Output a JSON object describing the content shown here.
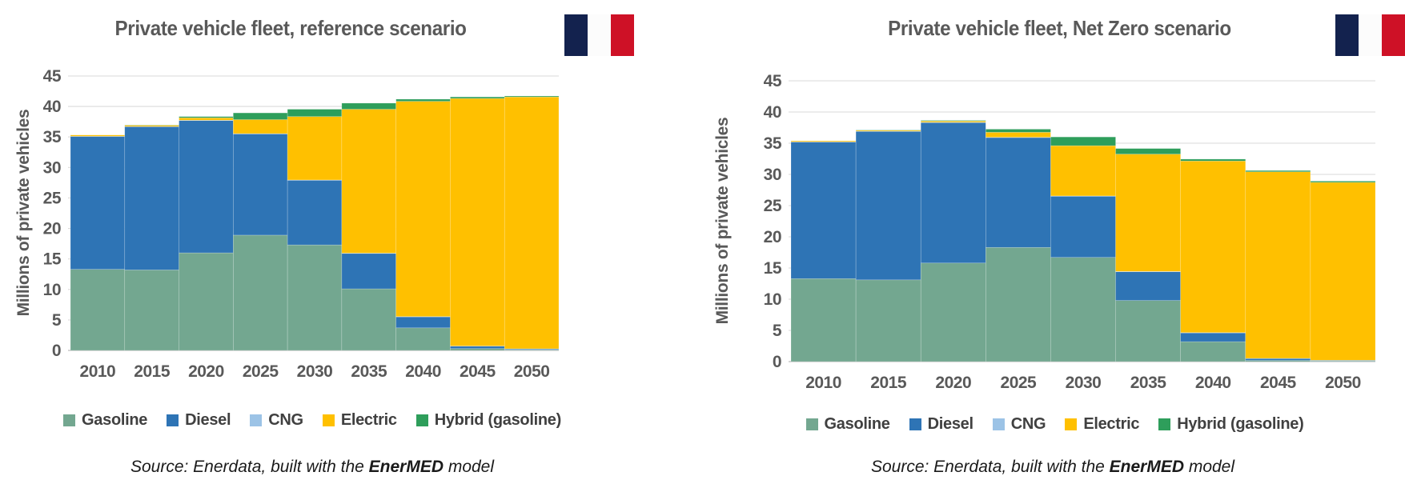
{
  "app": {
    "background": "#FFFFFF"
  },
  "flag": {
    "country": "France",
    "stripe_blue": "#13224E",
    "stripe_white": "#FCFCFC",
    "stripe_red": "#CE1126"
  },
  "style_colors": {
    "title_text": "#595959",
    "tick_text": "#595959",
    "legend_text": "#404040",
    "source_text": "#1A1A1A",
    "gridline": "#D9D9D9",
    "axis_line": "#C6C6C6"
  },
  "charts": [
    {
      "title": "Private vehicle fleet, reference scenario",
      "y_axis_title": "Millions of private vehicles",
      "source": {
        "prefix": "Source: Enerdata, built with the ",
        "bold": "EnerMED",
        "suffix": " model"
      },
      "chart_data": {
        "type": "bar",
        "stacked": true,
        "gap": "none (stepped columns)",
        "title": "Private vehicle fleet, reference scenario",
        "categories": [
          "2010",
          "2015",
          "2020",
          "2025",
          "2030",
          "2035",
          "2040",
          "2045",
          "2050"
        ],
        "series": [
          {
            "name": "Gasoline",
            "color": "#73A790",
            "values": [
              13.3,
              13.2,
              16.0,
              18.9,
              17.3,
              10.1,
              3.7,
              0.3,
              0.1
            ]
          },
          {
            "name": "Diesel",
            "color": "#2E74B5",
            "values": [
              21.8,
              23.5,
              21.7,
              16.6,
              10.6,
              5.8,
              1.8,
              0.4,
              0.15
            ]
          },
          {
            "name": "CNG",
            "color": "#9CC3E6",
            "values": [
              0.02,
              0.02,
              0.05,
              0.05,
              0.05,
              0.05,
              0.05,
              0.02,
              0.02
            ]
          },
          {
            "name": "Electric",
            "color": "#FFC000",
            "values": [
              0.2,
              0.2,
              0.4,
              2.3,
              10.4,
              23.6,
              35.3,
              40.6,
              41.3
            ]
          },
          {
            "name": "Hybrid (gasoline)",
            "color": "#2E9E5B",
            "values": [
              0.0,
              0.05,
              0.2,
              1.1,
              1.2,
              1.0,
              0.35,
              0.25,
              0.15
            ]
          }
        ],
        "xlabel": "",
        "ylabel": "Millions of private vehicles",
        "ylim": [
          0,
          45
        ],
        "ytick_step": 5,
        "grid": true,
        "legend_position": "bottom"
      }
    },
    {
      "title": "Private vehicle fleet, Net Zero scenario",
      "y_axis_title": "Millions of private vehicles",
      "source": {
        "prefix": "Source: Enerdata, built with the ",
        "bold": "EnerMED",
        "suffix": " model"
      },
      "chart_data": {
        "type": "bar",
        "stacked": true,
        "gap": "none (stepped columns)",
        "title": "Private vehicle fleet, Net Zero scenario",
        "categories": [
          "2010",
          "2015",
          "2020",
          "2025",
          "2030",
          "2035",
          "2040",
          "2045",
          "2050"
        ],
        "series": [
          {
            "name": "Gasoline",
            "color": "#73A790",
            "values": [
              13.3,
              13.1,
              15.8,
              18.3,
              16.7,
              9.8,
              3.2,
              0.2,
              0.1
            ]
          },
          {
            "name": "Diesel",
            "color": "#2E74B5",
            "values": [
              21.9,
              23.8,
              22.5,
              17.6,
              9.8,
              4.6,
              1.4,
              0.3,
              0.1
            ]
          },
          {
            "name": "CNG",
            "color": "#9CC3E6",
            "values": [
              0.02,
              0.02,
              0.05,
              0.05,
              0.05,
              0.05,
              0.05,
              0.02,
              0.02
            ]
          },
          {
            "name": "Electric",
            "color": "#FFC000",
            "values": [
              0.15,
              0.15,
              0.2,
              0.8,
              8.05,
              18.8,
              27.5,
              29.9,
              28.5
            ]
          },
          {
            "name": "Hybrid (gasoline)",
            "color": "#2E9E5B",
            "values": [
              0.0,
              0.05,
              0.1,
              0.5,
              1.4,
              0.9,
              0.3,
              0.2,
              0.2
            ]
          }
        ],
        "xlabel": "",
        "ylabel": "Millions of private vehicles",
        "ylim": [
          0,
          45
        ],
        "ytick_step": 5,
        "grid": true,
        "legend_position": "bottom"
      }
    }
  ]
}
